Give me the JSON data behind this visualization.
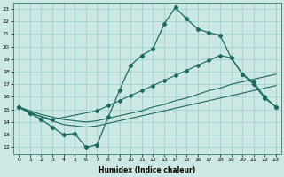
{
  "xlabel": "Humidex (Indice chaleur)",
  "bg_color": "#cce8e4",
  "grid_color": "#99ccc6",
  "line_color": "#1a6b5a",
  "xlim": [
    -0.5,
    23.5
  ],
  "ylim": [
    11.5,
    23.5
  ],
  "xticks": [
    0,
    1,
    2,
    3,
    4,
    5,
    6,
    7,
    8,
    9,
    10,
    11,
    12,
    13,
    14,
    15,
    16,
    17,
    18,
    19,
    20,
    21,
    22,
    23
  ],
  "yticks": [
    12,
    13,
    14,
    15,
    16,
    17,
    18,
    19,
    20,
    21,
    22,
    23
  ],
  "line1_x": [
    0,
    1,
    2,
    3,
    4,
    5,
    6,
    7,
    8,
    9,
    10,
    11,
    12,
    13,
    14,
    15,
    16,
    17,
    18,
    19,
    20,
    21,
    22,
    23
  ],
  "line1_y": [
    15.2,
    14.7,
    14.2,
    13.6,
    13.0,
    13.1,
    12.0,
    12.2,
    14.4,
    16.5,
    18.5,
    19.3,
    19.8,
    21.8,
    23.1,
    22.2,
    21.4,
    21.1,
    20.9,
    19.1,
    17.8,
    17.0,
    15.9,
    15.2
  ],
  "line2_x": [
    0,
    1,
    3,
    7,
    8,
    9,
    10,
    11,
    12,
    13,
    14,
    15,
    16,
    17,
    18,
    19,
    20,
    21,
    22,
    23
  ],
  "line2_y": [
    15.2,
    14.7,
    14.2,
    14.9,
    15.3,
    15.7,
    16.1,
    16.5,
    16.9,
    17.3,
    17.7,
    18.1,
    18.5,
    18.9,
    19.3,
    19.1,
    17.8,
    17.2,
    16.0,
    15.2
  ],
  "line3_x": [
    0,
    1,
    2,
    3,
    4,
    5,
    6,
    7,
    8,
    9,
    10,
    11,
    12,
    13,
    14,
    15,
    16,
    17,
    18,
    19,
    20,
    21,
    22,
    23
  ],
  "line3_y": [
    15.2,
    14.9,
    14.6,
    14.4,
    14.2,
    14.1,
    14.0,
    14.1,
    14.3,
    14.5,
    14.7,
    14.9,
    15.2,
    15.4,
    15.7,
    15.9,
    16.2,
    16.5,
    16.7,
    17.0,
    17.2,
    17.4,
    17.6,
    17.8
  ],
  "line4_x": [
    0,
    1,
    2,
    3,
    4,
    5,
    6,
    7,
    8,
    9,
    10,
    11,
    12,
    13,
    14,
    15,
    16,
    17,
    18,
    19,
    20,
    21,
    22,
    23
  ],
  "line4_y": [
    15.2,
    14.8,
    14.4,
    14.1,
    13.8,
    13.7,
    13.6,
    13.7,
    13.9,
    14.1,
    14.3,
    14.5,
    14.7,
    14.9,
    15.1,
    15.3,
    15.5,
    15.7,
    15.9,
    16.1,
    16.3,
    16.5,
    16.7,
    16.9
  ]
}
